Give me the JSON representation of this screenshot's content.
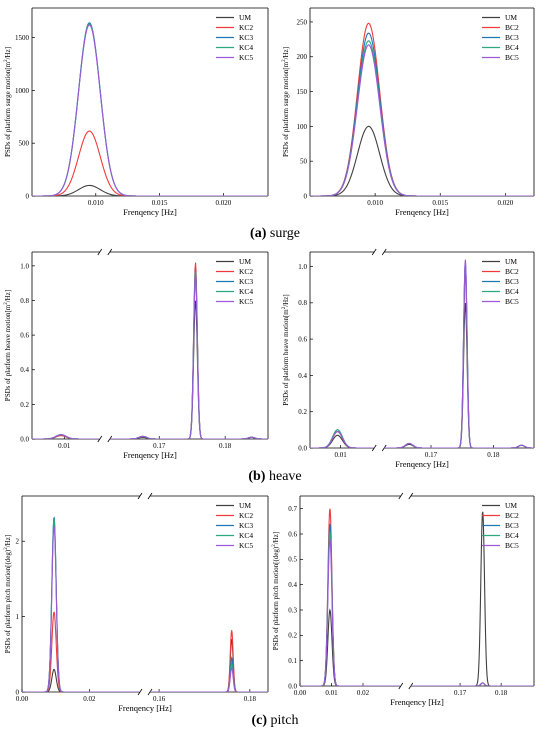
{
  "colors": {
    "UM": "#404040",
    "KC2": "#ef3b3b",
    "KC3": "#1f77b4",
    "KC4": "#2ca87c",
    "KC5": "#9b59d6",
    "BC2": "#ef3b3b",
    "BC3": "#1f77b4",
    "BC4": "#2ca87c",
    "BC5": "#9b59d6"
  },
  "captions": [
    {
      "letter": "(a)",
      "text": " surge"
    },
    {
      "letter": "(b)",
      "text": " heave"
    },
    {
      "letter": "(c)",
      "text": " pitch"
    }
  ],
  "chart_data": [
    {
      "id": "surge-kc",
      "type": "line",
      "xlabel": "Frenqency [Hz]",
      "ylabel_pre": "PSDs of platform surge motion[m",
      "ylabel_sup": "2",
      "ylabel_post": "/Hz]",
      "xlim": [
        0.005,
        0.0235
      ],
      "xticks": [
        0.01,
        0.015,
        0.02
      ],
      "xticklabels": [
        "0.010",
        "0.015",
        "0.020"
      ],
      "ylim": [
        0,
        1780
      ],
      "yticks": [
        0,
        500,
        1000,
        1500
      ],
      "yticklabels": [
        "0",
        "500",
        "1000",
        "1500"
      ],
      "legend": [
        "UM",
        "KC2",
        "KC3",
        "KC4",
        "KC5"
      ],
      "series": [
        {
          "name": "UM",
          "peaks": [
            {
              "x": 0.0095,
              "y": 100,
              "w": 0.00085
            }
          ]
        },
        {
          "name": "KC2",
          "peaks": [
            {
              "x": 0.0095,
              "y": 615,
              "w": 0.00085
            }
          ]
        },
        {
          "name": "KC3",
          "peaks": [
            {
              "x": 0.0095,
              "y": 1640,
              "w": 0.00085
            }
          ]
        },
        {
          "name": "KC4",
          "peaks": [
            {
              "x": 0.0095,
              "y": 1630,
              "w": 0.00085
            }
          ]
        },
        {
          "name": "KC5",
          "peaks": [
            {
              "x": 0.0095,
              "y": 1620,
              "w": 0.00085
            }
          ]
        }
      ]
    },
    {
      "id": "surge-bc",
      "type": "line",
      "xlabel": "Frenqency [Hz]",
      "ylabel_pre": "PSDs of platform surge motion[m",
      "ylabel_sup": "2",
      "ylabel_post": "/Hz]",
      "xlim": [
        0.005,
        0.0222
      ],
      "xticks": [
        0.01,
        0.015,
        0.02
      ],
      "xticklabels": [
        "0.010",
        "0.015",
        "0.020"
      ],
      "ylim": [
        0,
        270
      ],
      "yticks": [
        0,
        50,
        100,
        150,
        200,
        250
      ],
      "yticklabels": [
        "0",
        "50",
        "100",
        "150",
        "200",
        "250"
      ],
      "legend": [
        "UM",
        "BC2",
        "BC3",
        "BC4",
        "BC5"
      ],
      "series": [
        {
          "name": "UM",
          "peaks": [
            {
              "x": 0.0095,
              "y": 100,
              "w": 0.00085
            }
          ]
        },
        {
          "name": "BC2",
          "peaks": [
            {
              "x": 0.0095,
              "y": 248,
              "w": 0.00085
            }
          ]
        },
        {
          "name": "BC3",
          "peaks": [
            {
              "x": 0.0095,
              "y": 234,
              "w": 0.00085
            }
          ]
        },
        {
          "name": "BC4",
          "peaks": [
            {
              "x": 0.0095,
              "y": 223,
              "w": 0.00085
            }
          ]
        },
        {
          "name": "BC5",
          "peaks": [
            {
              "x": 0.0095,
              "y": 217,
              "w": 0.00085
            }
          ]
        }
      ]
    },
    {
      "id": "heave-kc",
      "type": "line",
      "xlabel": "Frenqency [Hz]",
      "ylabel_pre": "PSDs of platform heave motion[m",
      "ylabel_sup": "2",
      "ylabel_post": "/Hz]",
      "broken_x": true,
      "seg1": [
        0.005,
        0.0155
      ],
      "seg2": [
        0.1625,
        0.1865
      ],
      "xticks": [
        0.01,
        0.17,
        0.18
      ],
      "xticklabels": [
        "0.01",
        "0.17",
        "0.18"
      ],
      "ylim": [
        0,
        1.08
      ],
      "yticks": [
        0,
        0.2,
        0.4,
        0.6,
        0.8,
        1.0
      ],
      "yticklabels": [
        "0.0",
        "0.2",
        "0.4",
        "0.6",
        "0.8",
        "1.0"
      ],
      "legend": [
        "UM",
        "KC2",
        "KC3",
        "KC4",
        "KC5"
      ],
      "series": [
        {
          "name": "UM",
          "peaks": [
            {
              "x": 0.0095,
              "y": 0.02,
              "w": 0.0008
            },
            {
              "x": 0.1675,
              "y": 0.01,
              "w": 0.0006
            },
            {
              "x": 0.1755,
              "y": 0.8,
              "w": 0.00028
            },
            {
              "x": 0.184,
              "y": 0.01,
              "w": 0.0005
            }
          ]
        },
        {
          "name": "KC2",
          "peaks": [
            {
              "x": 0.0095,
              "y": 0.02,
              "w": 0.0008
            },
            {
              "x": 0.1675,
              "y": 0.015,
              "w": 0.0006
            },
            {
              "x": 0.1755,
              "y": 1.02,
              "w": 0.00028
            },
            {
              "x": 0.184,
              "y": 0.01,
              "w": 0.0005
            }
          ]
        },
        {
          "name": "KC3",
          "peaks": [
            {
              "x": 0.0095,
              "y": 0.025,
              "w": 0.0008
            },
            {
              "x": 0.1675,
              "y": 0.015,
              "w": 0.0006
            },
            {
              "x": 0.1755,
              "y": 0.98,
              "w": 0.00028
            },
            {
              "x": 0.184,
              "y": 0.01,
              "w": 0.0005
            }
          ]
        },
        {
          "name": "KC4",
          "peaks": [
            {
              "x": 0.0095,
              "y": 0.025,
              "w": 0.0008
            },
            {
              "x": 0.1675,
              "y": 0.015,
              "w": 0.0006
            },
            {
              "x": 0.1755,
              "y": 0.97,
              "w": 0.00028
            },
            {
              "x": 0.184,
              "y": 0.01,
              "w": 0.0005
            }
          ]
        },
        {
          "name": "KC5",
          "peaks": [
            {
              "x": 0.0095,
              "y": 0.025,
              "w": 0.0008
            },
            {
              "x": 0.1675,
              "y": 0.015,
              "w": 0.0006
            },
            {
              "x": 0.1755,
              "y": 0.95,
              "w": 0.00028
            },
            {
              "x": 0.184,
              "y": 0.01,
              "w": 0.0005
            }
          ]
        }
      ]
    },
    {
      "id": "heave-bc",
      "type": "line",
      "xlabel": "Frenqency [Hz]",
      "ylabel_pre": "PSDs of platform heave motion[m",
      "ylabel_sup": "2",
      "ylabel_post": "/Hz]",
      "broken_x": true,
      "seg1": [
        0.005,
        0.0155
      ],
      "seg2": [
        0.1625,
        0.1865
      ],
      "xticks": [
        0.01,
        0.17,
        0.18
      ],
      "xticklabels": [
        "0.01",
        "0.17",
        "0.18"
      ],
      "ylim": [
        0,
        1.08
      ],
      "yticks": [
        0,
        0.2,
        0.4,
        0.6,
        0.8,
        1.0
      ],
      "yticklabels": [
        "0.0",
        "0.2",
        "0.4",
        "0.6",
        "0.8",
        "1.0"
      ],
      "legend": [
        "UM",
        "BC2",
        "BC3",
        "BC4",
        "BC5"
      ],
      "series": [
        {
          "name": "UM",
          "peaks": [
            {
              "x": 0.0095,
              "y": 0.07,
              "w": 0.0008
            },
            {
              "x": 0.1665,
              "y": 0.02,
              "w": 0.0006
            },
            {
              "x": 0.1755,
              "y": 0.8,
              "w": 0.00028
            },
            {
              "x": 0.1845,
              "y": 0.015,
              "w": 0.0005
            }
          ]
        },
        {
          "name": "BC2",
          "peaks": [
            {
              "x": 0.0095,
              "y": 0.09,
              "w": 0.0008
            },
            {
              "x": 0.1665,
              "y": 0.025,
              "w": 0.0006
            },
            {
              "x": 0.1755,
              "y": 0.97,
              "w": 0.00028
            },
            {
              "x": 0.1845,
              "y": 0.015,
              "w": 0.0005
            }
          ]
        },
        {
          "name": "BC3",
          "peaks": [
            {
              "x": 0.0095,
              "y": 0.1,
              "w": 0.0008
            },
            {
              "x": 0.1665,
              "y": 0.025,
              "w": 0.0006
            },
            {
              "x": 0.1755,
              "y": 1.03,
              "w": 0.00028
            },
            {
              "x": 0.1845,
              "y": 0.015,
              "w": 0.0005
            }
          ]
        },
        {
          "name": "BC4",
          "peaks": [
            {
              "x": 0.0095,
              "y": 0.1,
              "w": 0.0008
            },
            {
              "x": 0.1665,
              "y": 0.025,
              "w": 0.0006
            },
            {
              "x": 0.1755,
              "y": 1.02,
              "w": 0.00028
            },
            {
              "x": 0.1845,
              "y": 0.015,
              "w": 0.0005
            }
          ]
        },
        {
          "name": "BC5",
          "peaks": [
            {
              "x": 0.0095,
              "y": 0.09,
              "w": 0.0008
            },
            {
              "x": 0.1665,
              "y": 0.025,
              "w": 0.0006
            },
            {
              "x": 0.1755,
              "y": 1.04,
              "w": 0.00028
            },
            {
              "x": 0.1845,
              "y": 0.015,
              "w": 0.0005
            }
          ]
        }
      ]
    },
    {
      "id": "pitch-kc",
      "type": "line",
      "xlabel": "Frenqency [Hz]",
      "ylabel_pre": "PSDs of platform pitch motion[(deg)",
      "ylabel_sup": "2",
      "ylabel_post": "/Hz]",
      "broken_x": true,
      "seg1": [
        0.0,
        0.035
      ],
      "seg2": [
        0.158,
        0.184
      ],
      "xticks": [
        0.0,
        0.02,
        0.16,
        0.18
      ],
      "xticklabels": [
        "0.00",
        "0.02",
        "0.16",
        "0.18"
      ],
      "ylim": [
        0,
        2.6
      ],
      "yticks": [
        0,
        1,
        2
      ],
      "yticklabels": [
        "0",
        "1",
        "2"
      ],
      "legend": [
        "UM",
        "KC2",
        "KC3",
        "KC4",
        "KC5"
      ],
      "series": [
        {
          "name": "UM",
          "peaks": [
            {
              "x": 0.0095,
              "y": 0.3,
              "w": 0.00065
            },
            {
              "x": 0.176,
              "y": 0.7,
              "w": 0.00032
            }
          ]
        },
        {
          "name": "KC2",
          "peaks": [
            {
              "x": 0.0095,
              "y": 1.06,
              "w": 0.00065
            },
            {
              "x": 0.176,
              "y": 0.82,
              "w": 0.00032
            }
          ]
        },
        {
          "name": "KC3",
          "peaks": [
            {
              "x": 0.0095,
              "y": 2.32,
              "w": 0.00065
            },
            {
              "x": 0.176,
              "y": 0.45,
              "w": 0.00032
            }
          ]
        },
        {
          "name": "KC4",
          "peaks": [
            {
              "x": 0.0095,
              "y": 2.3,
              "w": 0.00065
            },
            {
              "x": 0.176,
              "y": 0.38,
              "w": 0.00032
            }
          ]
        },
        {
          "name": "KC5",
          "peaks": [
            {
              "x": 0.0095,
              "y": 2.2,
              "w": 0.00065
            },
            {
              "x": 0.176,
              "y": 0.32,
              "w": 0.00032
            }
          ]
        }
      ]
    },
    {
      "id": "pitch-bc",
      "type": "line",
      "xlabel": "Frenqency [Hz]",
      "ylabel_pre": "PSDs of platform pitch motion[(deg)",
      "ylabel_sup": "2",
      "ylabel_post": "/Hz]",
      "broken_x": true,
      "seg1": [
        0.0,
        0.032
      ],
      "seg2": [
        0.158,
        0.188
      ],
      "xticks": [
        0.0,
        0.01,
        0.02,
        0.17,
        0.18
      ],
      "xticklabels": [
        "0.00",
        "0.01",
        "0.02",
        "0.17",
        "0.18"
      ],
      "ylim": [
        0,
        0.75
      ],
      "yticks": [
        0,
        0.1,
        0.2,
        0.3,
        0.4,
        0.5,
        0.6,
        0.7
      ],
      "yticklabels": [
        "0.0",
        "0.1",
        "0.2",
        "0.3",
        "0.4",
        "0.5",
        "0.6",
        "0.7"
      ],
      "legend": [
        "UM",
        "BC2",
        "BC3",
        "BC4",
        "BC5"
      ],
      "series": [
        {
          "name": "UM",
          "peaks": [
            {
              "x": 0.0095,
              "y": 0.3,
              "w": 0.00065
            },
            {
              "x": 0.1755,
              "y": 0.69,
              "w": 0.00045
            }
          ]
        },
        {
          "name": "BC2",
          "peaks": [
            {
              "x": 0.0095,
              "y": 0.7,
              "w": 0.00065
            },
            {
              "x": 0.1755,
              "y": 0.012,
              "w": 0.00045
            }
          ]
        },
        {
          "name": "BC3",
          "peaks": [
            {
              "x": 0.0095,
              "y": 0.64,
              "w": 0.00065
            },
            {
              "x": 0.1755,
              "y": 0.012,
              "w": 0.00045
            }
          ]
        },
        {
          "name": "BC4",
          "peaks": [
            {
              "x": 0.0095,
              "y": 0.61,
              "w": 0.00065
            },
            {
              "x": 0.1755,
              "y": 0.012,
              "w": 0.00045
            }
          ]
        },
        {
          "name": "BC5",
          "peaks": [
            {
              "x": 0.0095,
              "y": 0.58,
              "w": 0.00065
            },
            {
              "x": 0.1755,
              "y": 0.012,
              "w": 0.00045
            }
          ]
        }
      ]
    }
  ]
}
